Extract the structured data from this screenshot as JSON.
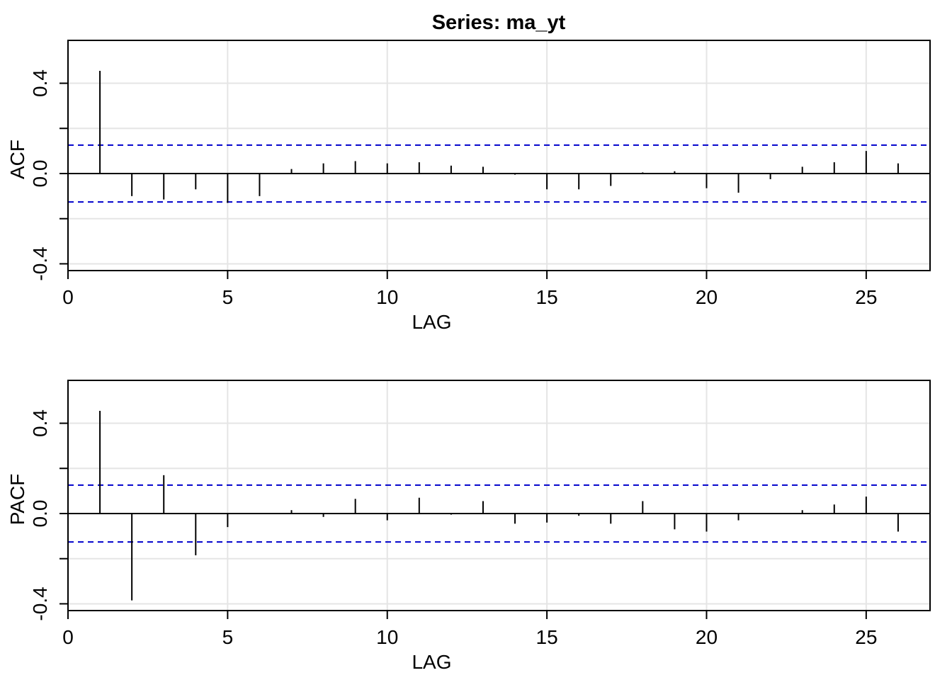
{
  "title": "Series:  ma_yt",
  "chart_data": [
    {
      "type": "bar",
      "ylabel": "ACF",
      "xlabel": "LAG",
      "xlim": [
        0,
        27
      ],
      "ylim": [
        -0.43,
        0.59
      ],
      "x_ticks": [
        0,
        5,
        10,
        15,
        20,
        25
      ],
      "x_tick_labels": [
        "0",
        "5",
        "10",
        "15",
        "20",
        "25"
      ],
      "y_ticks": [
        -0.4,
        0.0,
        0.4
      ],
      "y_tick_labels": [
        "-0.4",
        "0.0",
        "0.4"
      ],
      "y_minor_ticks": [
        -0.2,
        0.2
      ],
      "confidence_limit": 0.126,
      "grid": true,
      "lags": [
        1,
        2,
        3,
        4,
        5,
        6,
        7,
        8,
        9,
        10,
        11,
        12,
        13,
        14,
        15,
        16,
        17,
        18,
        19,
        20,
        21,
        22,
        23,
        24,
        25,
        26
      ],
      "values": [
        0.455,
        -0.1,
        -0.115,
        -0.07,
        -0.13,
        -0.1,
        0.02,
        0.045,
        0.055,
        0.045,
        0.05,
        0.035,
        0.03,
        -0.005,
        -0.07,
        -0.07,
        -0.055,
        0.005,
        0.01,
        -0.065,
        -0.085,
        -0.025,
        0.03,
        0.05,
        0.1,
        0.045
      ]
    },
    {
      "type": "bar",
      "ylabel": "PACF",
      "xlabel": "LAG",
      "xlim": [
        0,
        27
      ],
      "ylim": [
        -0.43,
        0.59
      ],
      "x_ticks": [
        0,
        5,
        10,
        15,
        20,
        25
      ],
      "x_tick_labels": [
        "0",
        "5",
        "10",
        "15",
        "20",
        "25"
      ],
      "y_ticks": [
        -0.4,
        0.0,
        0.4
      ],
      "y_tick_labels": [
        "-0.4",
        "0.0",
        "0.4"
      ],
      "y_minor_ticks": [
        -0.2,
        0.2
      ],
      "confidence_limit": 0.126,
      "grid": true,
      "lags": [
        1,
        2,
        3,
        4,
        5,
        6,
        7,
        8,
        9,
        10,
        11,
        12,
        13,
        14,
        15,
        16,
        17,
        18,
        19,
        20,
        21,
        22,
        23,
        24,
        25,
        26
      ],
      "values": [
        0.455,
        -0.385,
        0.17,
        -0.185,
        -0.06,
        0.0,
        0.015,
        -0.015,
        0.065,
        -0.03,
        0.07,
        -0.005,
        0.055,
        -0.045,
        -0.04,
        -0.01,
        -0.045,
        0.055,
        -0.07,
        -0.08,
        -0.03,
        0.0,
        0.015,
        0.04,
        0.075,
        -0.08
      ]
    }
  ]
}
